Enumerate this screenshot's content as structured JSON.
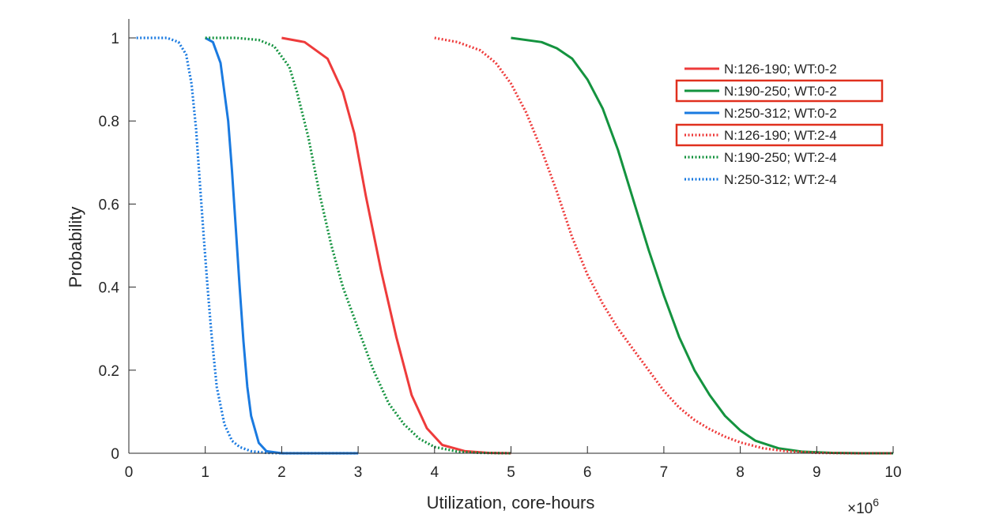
{
  "chart_data": {
    "type": "line",
    "xlabel": "Utilization, core-hours",
    "ylabel": "Probability",
    "x_multiplier_label": "×10",
    "x_multiplier_exponent": "6",
    "xlim": [
      0,
      10
    ],
    "ylim": [
      0,
      1
    ],
    "xticks": [
      "0",
      "1",
      "2",
      "3",
      "4",
      "5",
      "6",
      "7",
      "8",
      "9",
      "10"
    ],
    "yticks": [
      "0",
      "0.2",
      "0.4",
      "0.6",
      "0.8",
      "1"
    ],
    "grid": false,
    "legend_position": "top-right",
    "series": [
      {
        "name": "N:126-190; WT:0-2",
        "color": "#ee3b3b",
        "style": "solid",
        "highlighted": false,
        "x": [
          2.0,
          2.3,
          2.6,
          2.8,
          2.95,
          3.1,
          3.3,
          3.5,
          3.7,
          3.9,
          4.1,
          4.4,
          4.7,
          5.0
        ],
        "y": [
          1.0,
          0.99,
          0.95,
          0.87,
          0.77,
          0.62,
          0.44,
          0.28,
          0.14,
          0.06,
          0.02,
          0.005,
          0.001,
          0.0
        ]
      },
      {
        "name": "N:190-250; WT:0-2",
        "color": "#14933f",
        "style": "solid",
        "highlighted": true,
        "x": [
          5.0,
          5.4,
          5.6,
          5.8,
          6.0,
          6.2,
          6.4,
          6.6,
          6.8,
          7.0,
          7.2,
          7.4,
          7.6,
          7.8,
          8.0,
          8.2,
          8.5,
          8.8,
          9.2,
          9.6,
          10.0
        ],
        "y": [
          1.0,
          0.99,
          0.975,
          0.95,
          0.9,
          0.83,
          0.73,
          0.61,
          0.49,
          0.38,
          0.28,
          0.2,
          0.14,
          0.09,
          0.055,
          0.03,
          0.012,
          0.004,
          0.001,
          0.0,
          0.0
        ]
      },
      {
        "name": "N:250-312; WT:0-2",
        "color": "#1a7ae0",
        "style": "solid",
        "highlighted": false,
        "x": [
          1.0,
          1.1,
          1.2,
          1.3,
          1.35,
          1.4,
          1.45,
          1.5,
          1.55,
          1.6,
          1.7,
          1.8,
          2.0,
          2.5,
          3.0
        ],
        "y": [
          1.0,
          0.99,
          0.94,
          0.8,
          0.68,
          0.54,
          0.4,
          0.27,
          0.16,
          0.09,
          0.025,
          0.005,
          0.0,
          0.0,
          0.0
        ]
      },
      {
        "name": "N:126-190; WT:2-4",
        "color": "#ee3b3b",
        "style": "dotted",
        "highlighted": true,
        "x": [
          4.0,
          4.3,
          4.6,
          4.8,
          5.0,
          5.2,
          5.4,
          5.6,
          5.8,
          6.0,
          6.2,
          6.4,
          6.6,
          6.8,
          7.0,
          7.2,
          7.4,
          7.6,
          7.8,
          8.0,
          8.3,
          8.6,
          9.0,
          9.5,
          10.0
        ],
        "y": [
          1.0,
          0.99,
          0.97,
          0.94,
          0.89,
          0.82,
          0.73,
          0.63,
          0.52,
          0.43,
          0.36,
          0.3,
          0.25,
          0.2,
          0.15,
          0.11,
          0.08,
          0.058,
          0.04,
          0.026,
          0.012,
          0.005,
          0.001,
          0.0,
          0.0
        ]
      },
      {
        "name": "N:190-250; WT:2-4",
        "color": "#14933f",
        "style": "dotted",
        "highlighted": false,
        "x": [
          1.0,
          1.4,
          1.7,
          1.9,
          2.1,
          2.2,
          2.35,
          2.5,
          2.65,
          2.8,
          3.0,
          3.2,
          3.4,
          3.6,
          3.8,
          4.0,
          4.3,
          4.6,
          5.0
        ],
        "y": [
          1.0,
          1.0,
          0.995,
          0.98,
          0.93,
          0.87,
          0.76,
          0.62,
          0.5,
          0.4,
          0.3,
          0.2,
          0.12,
          0.07,
          0.035,
          0.015,
          0.004,
          0.001,
          0.0
        ]
      },
      {
        "name": "N:250-312; WT:2-4",
        "color": "#1a7ae0",
        "style": "dotted",
        "highlighted": false,
        "x": [
          0.1,
          0.5,
          0.65,
          0.75,
          0.82,
          0.88,
          0.93,
          0.98,
          1.03,
          1.08,
          1.15,
          1.25,
          1.35,
          1.45,
          1.6,
          1.8,
          2.0,
          2.5,
          3.0
        ],
        "y": [
          1.0,
          1.0,
          0.99,
          0.96,
          0.89,
          0.78,
          0.65,
          0.52,
          0.4,
          0.29,
          0.16,
          0.07,
          0.03,
          0.015,
          0.005,
          0.001,
          0.0,
          0.0,
          0.0
        ]
      }
    ]
  }
}
